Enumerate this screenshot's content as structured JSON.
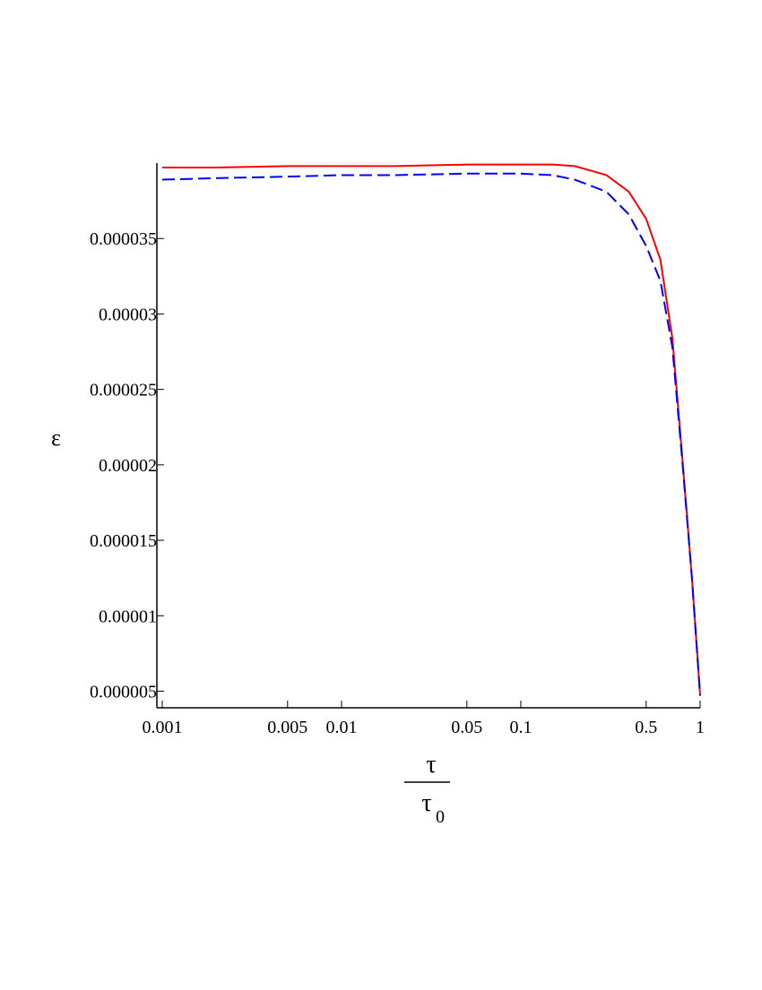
{
  "chart_data": {
    "type": "line",
    "ylabel": "ε",
    "xlabel": {
      "numerator": "τ",
      "denominator": "τ",
      "subscript": "0"
    },
    "x": [
      0.001,
      0.002,
      0.005,
      0.01,
      0.02,
      0.05,
      0.1,
      0.15,
      0.2,
      0.3,
      0.4,
      0.5,
      0.6,
      0.7,
      0.8,
      0.9,
      1
    ],
    "series": [
      {
        "color": "#ff0000",
        "dash": false,
        "values": [
          3.97e-05,
          3.97e-05,
          3.98e-05,
          3.98e-05,
          3.98e-05,
          3.99e-05,
          3.99e-05,
          3.99e-05,
          3.98e-05,
          3.92e-05,
          3.81e-05,
          3.63e-05,
          3.36e-05,
          2.84e-05,
          2.01e-05,
          1.25e-05,
          4.7e-06
        ]
      },
      {
        "color": "#0000ff",
        "dash": true,
        "values": [
          3.89e-05,
          3.9e-05,
          3.91e-05,
          3.92e-05,
          3.92e-05,
          3.93e-05,
          3.93e-05,
          3.92e-05,
          3.89e-05,
          3.81e-05,
          3.66e-05,
          3.45e-05,
          3.22e-05,
          2.78e-05,
          1.99e-05,
          1.25e-05,
          4.7e-06
        ]
      }
    ],
    "xscale": "log",
    "xlim": [
      0.001,
      1
    ],
    "xticks": [
      0.001,
      0.005,
      0.01,
      0.05,
      0.1,
      0.5,
      1
    ],
    "ylim": [
      3.9e-06,
      4e-05
    ],
    "yticks": [
      5e-06,
      1e-05,
      1.5e-05,
      2e-05,
      2.5e-05,
      3e-05,
      3.5e-05
    ]
  }
}
